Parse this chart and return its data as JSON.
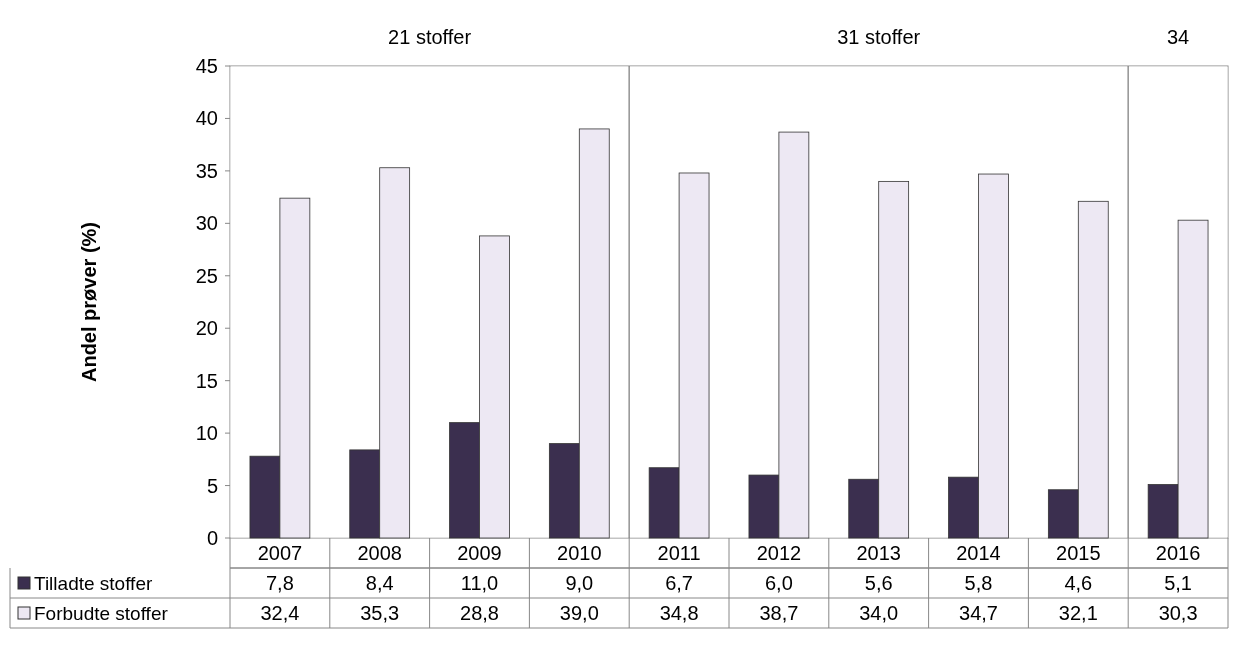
{
  "chart_data": {
    "type": "bar",
    "ylabel": "Andel prøver (%)",
    "categories": [
      "2007",
      "2008",
      "2009",
      "2010",
      "2011",
      "2012",
      "2013",
      "2014",
      "2015",
      "2016"
    ],
    "series": [
      {
        "name": "Tilladte stoffer",
        "color": "#3b2f4f",
        "values": [
          7.8,
          8.4,
          11.0,
          9.0,
          6.7,
          6.0,
          5.6,
          5.8,
          4.6,
          5.1
        ],
        "value_labels": [
          "7,8",
          "8,4",
          "11,0",
          "9,0",
          "6,7",
          "6,0",
          "5,6",
          "5,8",
          "4,6",
          "5,1"
        ]
      },
      {
        "name": "Forbudte stoffer",
        "color": "#ede8f3",
        "values": [
          32.4,
          35.3,
          28.8,
          39.0,
          34.8,
          38.7,
          34.0,
          34.7,
          32.1,
          30.3
        ],
        "value_labels": [
          "32,4",
          "35,3",
          "28,8",
          "39,0",
          "34,8",
          "38,7",
          "34,0",
          "34,7",
          "32,1",
          "30,3"
        ]
      }
    ],
    "ylim": [
      0,
      45
    ],
    "yticks": [
      0,
      5,
      10,
      15,
      20,
      25,
      30,
      35,
      40,
      45
    ],
    "bands": [
      {
        "axis": "x",
        "from": "2007",
        "to": "2010",
        "label": "21 stoffer",
        "color": "#ffffff"
      },
      {
        "axis": "x",
        "from": "2011",
        "to": "2015",
        "label": "31 stoffer",
        "color": "#ffffff"
      },
      {
        "axis": "x",
        "from": "2016",
        "to": "2016",
        "label": "34",
        "color": "#ffffff"
      }
    ],
    "legend": "bottom"
  }
}
